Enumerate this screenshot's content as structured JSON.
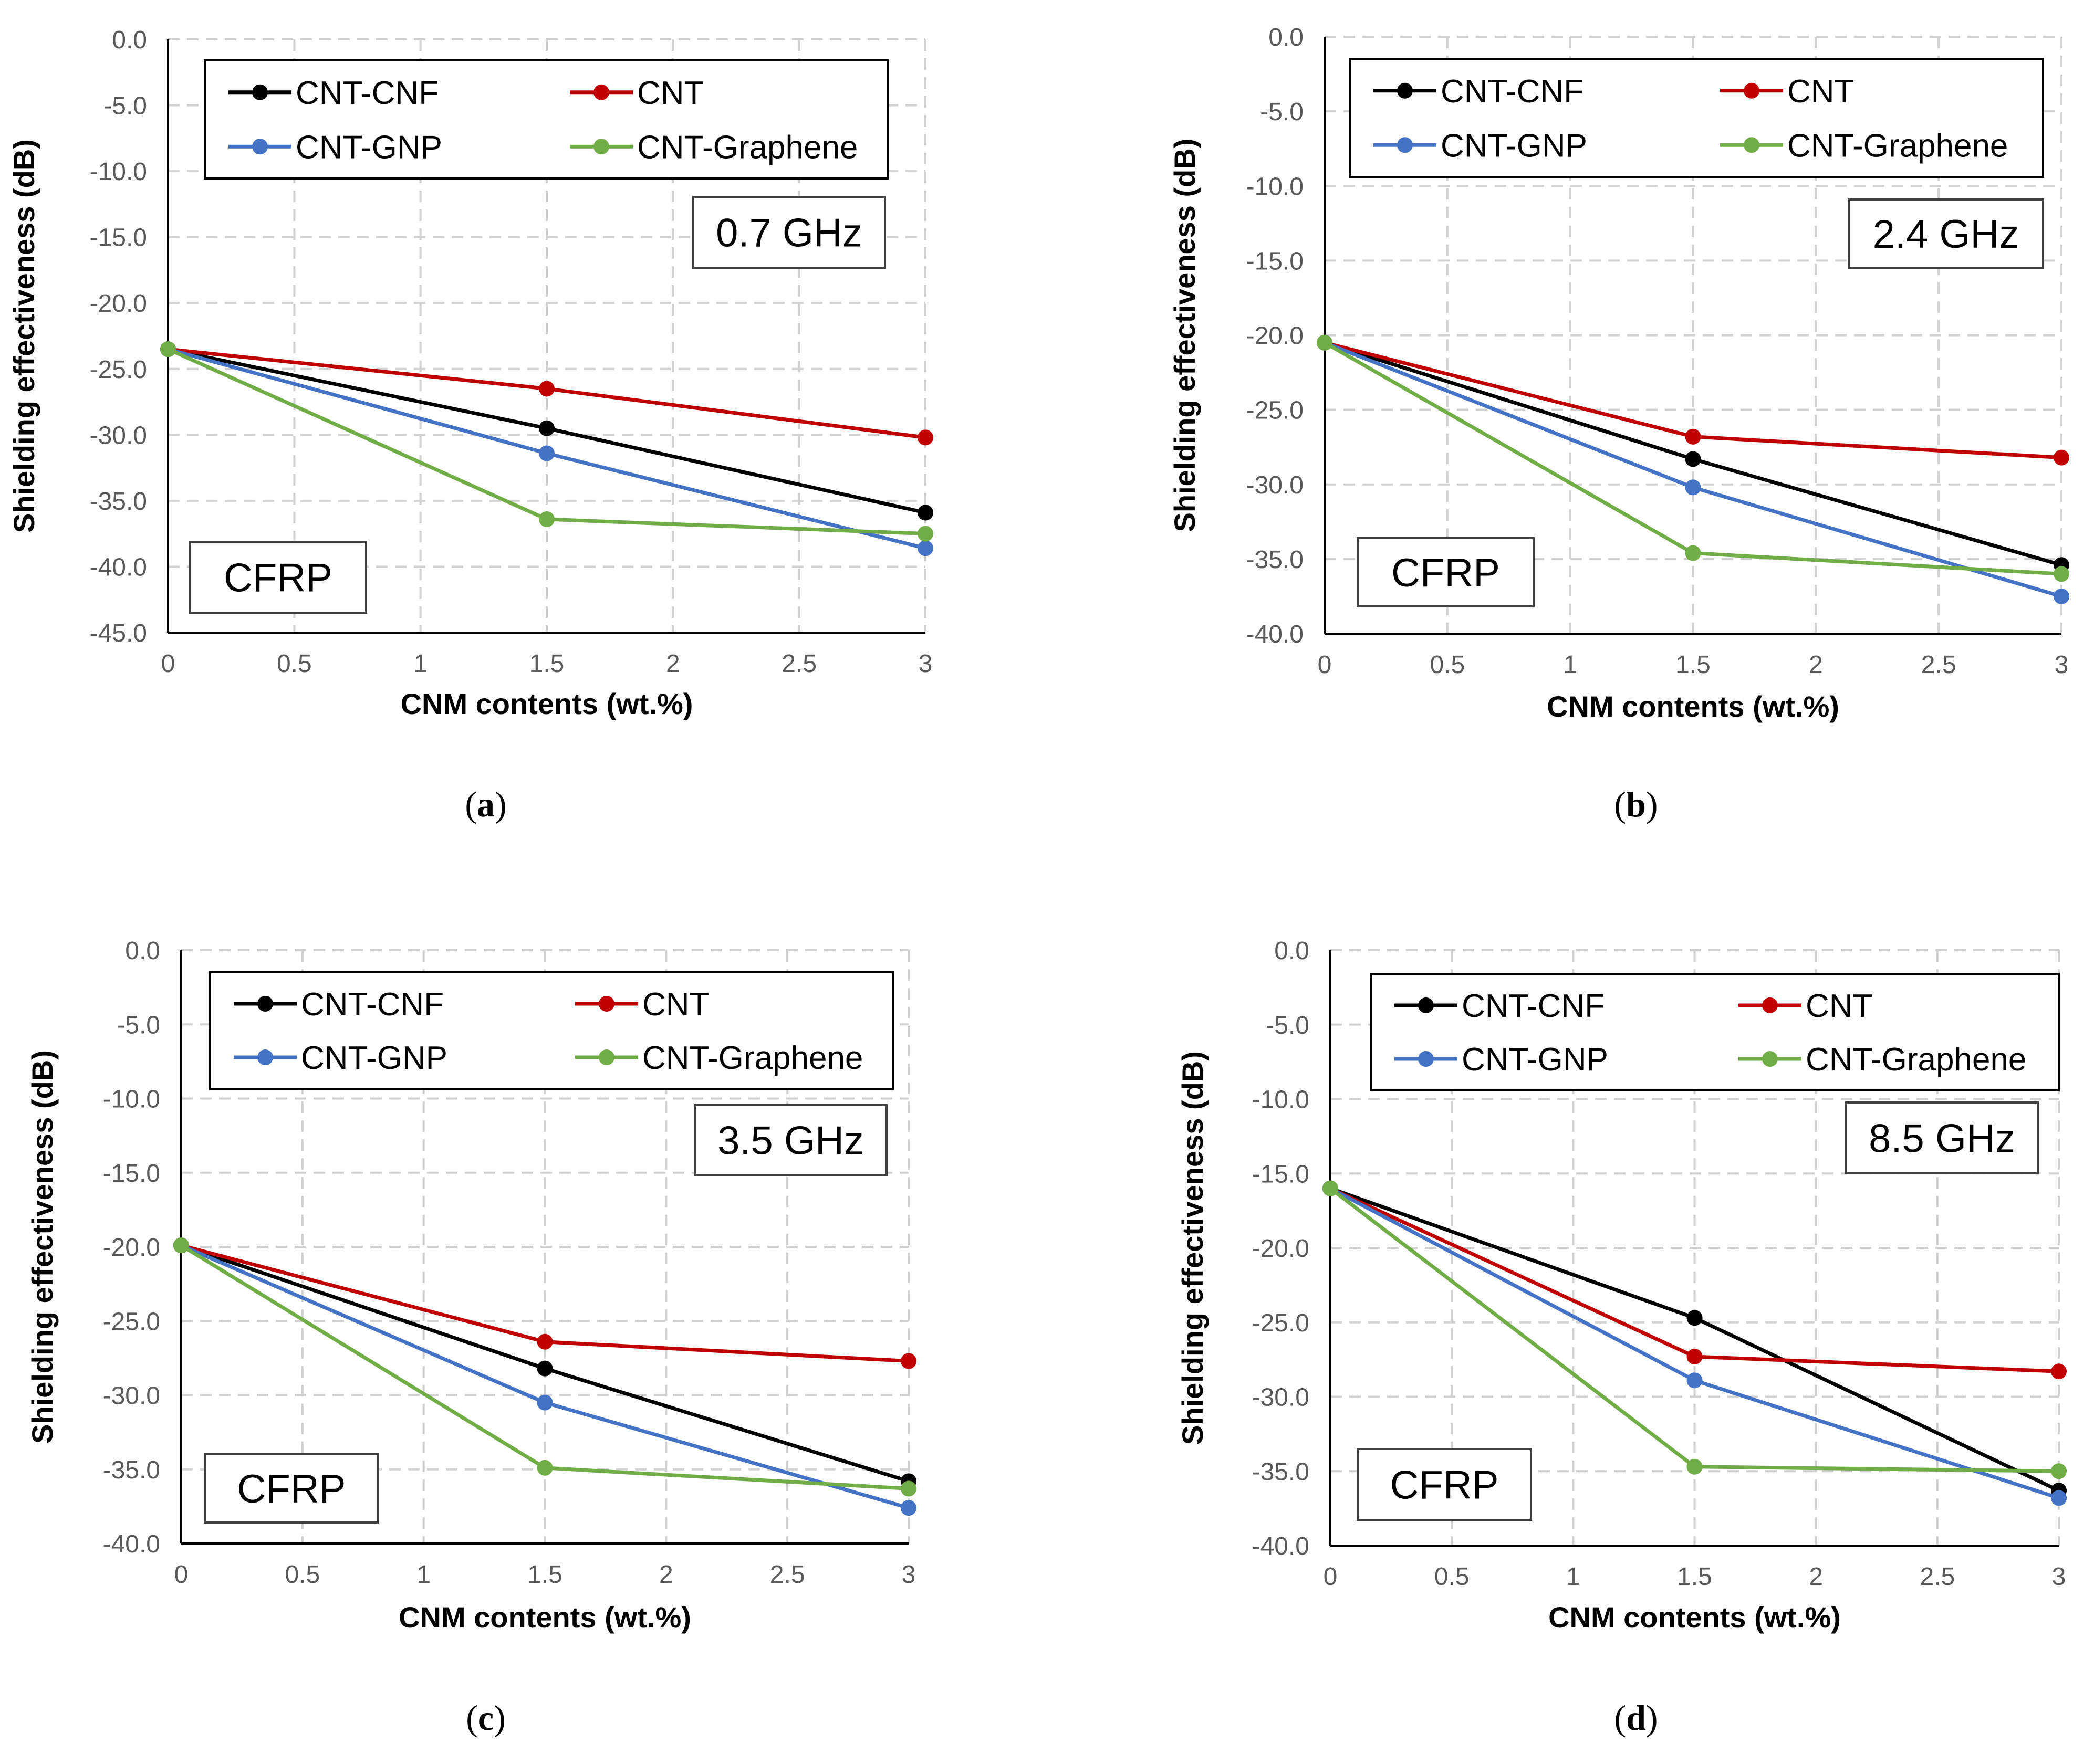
{
  "figure": {
    "series_colors": {
      "CNT-CNF": "#000000",
      "CNT": "#c00000",
      "CNT-GNP": "#4472c4",
      "CNT-Graphene": "#70ad47"
    }
  },
  "chart_data": [
    {
      "id": "a",
      "type": "line",
      "caption_letter": "a",
      "caption_open": "(",
      "caption_close": ")",
      "frequency_label": "0.7 GHz",
      "material_label": "CFRP",
      "xlabel": "CNM contents (wt.%)",
      "ylabel": "Shielding effectiveness (dB)",
      "xlim": [
        0,
        3
      ],
      "ylim": [
        -45,
        0
      ],
      "x_ticks": [
        "0",
        "0.5",
        "1",
        "1.5",
        "2",
        "2.5",
        "3"
      ],
      "y_ticks": [
        "0.0",
        "-5.0",
        "-10.0",
        "-15.0",
        "-20.0",
        "-25.0",
        "-30.0",
        "-35.0",
        "-40.0",
        "-45.0"
      ],
      "grid": true,
      "x": [
        0,
        1.5,
        3
      ],
      "series": [
        {
          "name": "CNT-CNF",
          "values": [
            -23.5,
            -29.5,
            -35.9
          ]
        },
        {
          "name": "CNT",
          "values": [
            -23.5,
            -26.5,
            -30.2
          ]
        },
        {
          "name": "CNT-GNP",
          "values": [
            -23.5,
            -31.4,
            -38.6
          ]
        },
        {
          "name": "CNT-Graphene",
          "values": [
            -23.5,
            -36.4,
            -37.5
          ]
        }
      ]
    },
    {
      "id": "b",
      "type": "line",
      "caption_letter": "b",
      "caption_open": "(",
      "caption_close": ")",
      "frequency_label": "2.4 GHz",
      "material_label": "CFRP",
      "xlabel": "CNM contents (wt.%)",
      "ylabel": "Shielding effectiveness (dB)",
      "xlim": [
        0,
        3
      ],
      "ylim": [
        -40,
        0
      ],
      "x_ticks": [
        "0",
        "0.5",
        "1",
        "1.5",
        "2",
        "2.5",
        "3"
      ],
      "y_ticks": [
        "0.0",
        "-5.0",
        "-10.0",
        "-15.0",
        "-20.0",
        "-25.0",
        "-30.0",
        "-35.0",
        "-40.0"
      ],
      "grid": true,
      "x": [
        0,
        1.5,
        3
      ],
      "series": [
        {
          "name": "CNT-CNF",
          "values": [
            -20.5,
            -28.3,
            -35.4
          ]
        },
        {
          "name": "CNT",
          "values": [
            -20.5,
            -26.8,
            -28.2
          ]
        },
        {
          "name": "CNT-GNP",
          "values": [
            -20.5,
            -30.2,
            -37.5
          ]
        },
        {
          "name": "CNT-Graphene",
          "values": [
            -20.5,
            -34.6,
            -36.0
          ]
        }
      ]
    },
    {
      "id": "c",
      "type": "line",
      "caption_letter": "c",
      "caption_open": "(",
      "caption_close": ")",
      "frequency_label": "3.5 GHz",
      "material_label": "CFRP",
      "xlabel": "CNM contents (wt.%)",
      "ylabel": "Shielding effectiveness (dB)",
      "xlim": [
        0,
        3
      ],
      "ylim": [
        -40,
        0
      ],
      "x_ticks": [
        "0",
        "0.5",
        "1",
        "1.5",
        "2",
        "2.5",
        "3"
      ],
      "y_ticks": [
        "0.0",
        "-5.0",
        "-10.0",
        "-15.0",
        "-20.0",
        "-25.0",
        "-30.0",
        "-35.0",
        "-40.0"
      ],
      "grid": true,
      "x": [
        0,
        1.5,
        3
      ],
      "series": [
        {
          "name": "CNT-CNF",
          "values": [
            -19.9,
            -28.2,
            -35.8
          ]
        },
        {
          "name": "CNT",
          "values": [
            -19.9,
            -26.4,
            -27.7
          ]
        },
        {
          "name": "CNT-GNP",
          "values": [
            -19.9,
            -30.5,
            -37.6
          ]
        },
        {
          "name": "CNT-Graphene",
          "values": [
            -19.9,
            -34.9,
            -36.3
          ]
        }
      ]
    },
    {
      "id": "d",
      "type": "line",
      "caption_letter": "d",
      "caption_open": "(",
      "caption_close": ")",
      "frequency_label": "8.5 GHz",
      "material_label": "CFRP",
      "xlabel": "CNM contents (wt.%)",
      "ylabel": "Shielding effectiveness (dB)",
      "xlim": [
        0,
        3
      ],
      "ylim": [
        -40,
        0
      ],
      "x_ticks": [
        "0",
        "0.5",
        "1",
        "1.5",
        "2",
        "2.5",
        "3"
      ],
      "y_ticks": [
        "0.0",
        "-5.0",
        "-10.0",
        "-15.0",
        "-20.0",
        "-25.0",
        "-30.0",
        "-35.0",
        "-40.0"
      ],
      "grid": true,
      "x": [
        0,
        1.5,
        3
      ],
      "series": [
        {
          "name": "CNT-CNF",
          "values": [
            -16.0,
            -24.7,
            -36.3
          ]
        },
        {
          "name": "CNT",
          "values": [
            -16.0,
            -27.3,
            -28.3
          ]
        },
        {
          "name": "CNT-GNP",
          "values": [
            -16.0,
            -28.9,
            -36.8
          ]
        },
        {
          "name": "CNT-Graphene",
          "values": [
            -16.0,
            -34.7,
            -35.0
          ]
        }
      ]
    }
  ]
}
